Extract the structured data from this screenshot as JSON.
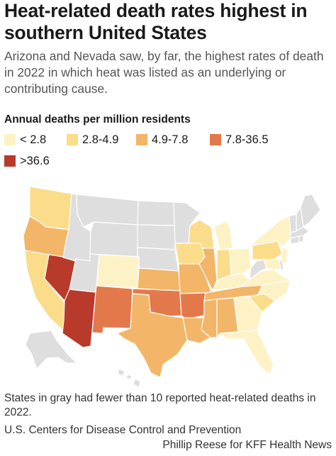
{
  "title": "Heat-related death rates highest in southern United States",
  "subtitle": "Arizona and Nevada saw, by far, the highest rates of death in 2022 in which heat was listed as an underlying or contributing cause.",
  "legend": {
    "title": "Annual deaths per million residents",
    "items": [
      {
        "label": "< 2.8",
        "color": "#fdf2c6"
      },
      {
        "label": "2.8-4.9",
        "color": "#fadc8b"
      },
      {
        "label": "4.9-7.8",
        "color": "#f3b567"
      },
      {
        "label": "7.8-36.5",
        "color": "#e3794a"
      },
      {
        "label": ">36.6",
        "color": "#b83a2b"
      }
    ]
  },
  "no_data_color": "#dedede",
  "states": [
    {
      "name": "Washington",
      "bin": 2
    },
    {
      "name": "Oregon",
      "bin": 3
    },
    {
      "name": "California",
      "bin": 2
    },
    {
      "name": "Nevada",
      "bin": 5
    },
    {
      "name": "Arizona",
      "bin": 5
    },
    {
      "name": "Idaho",
      "bin": 0
    },
    {
      "name": "Montana",
      "bin": 0
    },
    {
      "name": "Wyoming",
      "bin": 0
    },
    {
      "name": "Utah",
      "bin": 0
    },
    {
      "name": "Colorado",
      "bin": 1
    },
    {
      "name": "New Mexico",
      "bin": 4
    },
    {
      "name": "North Dakota",
      "bin": 0
    },
    {
      "name": "South Dakota",
      "bin": 0
    },
    {
      "name": "Nebraska",
      "bin": 0
    },
    {
      "name": "Kansas",
      "bin": 3
    },
    {
      "name": "Oklahoma",
      "bin": 4
    },
    {
      "name": "Texas",
      "bin": 3
    },
    {
      "name": "Minnesota",
      "bin": 0
    },
    {
      "name": "Iowa",
      "bin": 2
    },
    {
      "name": "Missouri",
      "bin": 3
    },
    {
      "name": "Arkansas",
      "bin": 4
    },
    {
      "name": "Louisiana",
      "bin": 3
    },
    {
      "name": "Wisconsin",
      "bin": 2
    },
    {
      "name": "Illinois",
      "bin": 3
    },
    {
      "name": "Michigan",
      "bin": 1
    },
    {
      "name": "Indiana",
      "bin": 2
    },
    {
      "name": "Ohio",
      "bin": 1
    },
    {
      "name": "Kentucky",
      "bin": 1
    },
    {
      "name": "Tennessee",
      "bin": 3
    },
    {
      "name": "Mississippi",
      "bin": 3
    },
    {
      "name": "Alabama",
      "bin": 3
    },
    {
      "name": "Georgia",
      "bin": 1
    },
    {
      "name": "Florida",
      "bin": 1
    },
    {
      "name": "South Carolina",
      "bin": 2
    },
    {
      "name": "North Carolina",
      "bin": 1
    },
    {
      "name": "Virginia",
      "bin": 1
    },
    {
      "name": "West Virginia",
      "bin": 0
    },
    {
      "name": "Pennsylvania",
      "bin": 2
    },
    {
      "name": "New York",
      "bin": 1
    },
    {
      "name": "New Jersey",
      "bin": 1
    },
    {
      "name": "Maryland",
      "bin": 1
    },
    {
      "name": "Delaware",
      "bin": 0
    },
    {
      "name": "Vermont",
      "bin": 0
    },
    {
      "name": "New Hampshire",
      "bin": 0
    },
    {
      "name": "Maine",
      "bin": 0
    },
    {
      "name": "Massachusetts",
      "bin": 0
    },
    {
      "name": "Connecticut",
      "bin": 0
    },
    {
      "name": "Rhode Island",
      "bin": 0
    },
    {
      "name": "Alaska",
      "bin": 0
    },
    {
      "name": "Hawaii",
      "bin": 0
    }
  ],
  "footnote": "States in gray had fewer than 10 reported heat-related deaths in 2022.",
  "source": "U.S. Centers for Disease Control and Prevention",
  "credit": "Phillip Reese for KFF Health News"
}
